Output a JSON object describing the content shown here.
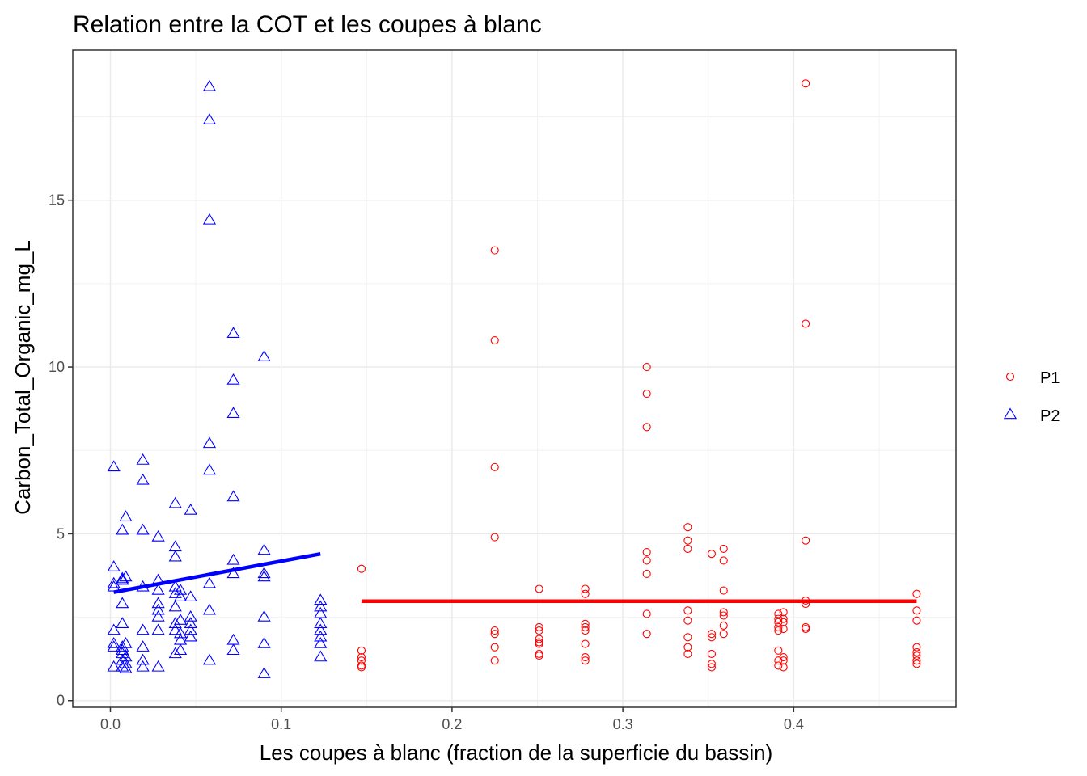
{
  "chart_data": {
    "type": "scatter",
    "title": "Relation entre la COT et les coupes à blanc",
    "xlabel": "Les coupes à blanc (fraction de la superficie du bassin)",
    "ylabel": "Carbon_Total_Organic_mg_L",
    "xlim": [
      -0.022,
      0.495
    ],
    "ylim": [
      -0.2,
      19.5
    ],
    "x_ticks": [
      0.0,
      0.1,
      0.2,
      0.3,
      0.4
    ],
    "x_tick_labels": [
      "0.0",
      "0.1",
      "0.2",
      "0.3",
      "0.4"
    ],
    "y_ticks": [
      0,
      5,
      10,
      15
    ],
    "y_tick_labels": [
      "0",
      "5",
      "10",
      "15"
    ],
    "grid": true,
    "legend_position": "right",
    "series": [
      {
        "name": "P1",
        "color": "#ff0000",
        "marker": "circle-open",
        "points": [
          [
            0.147,
            3.95
          ],
          [
            0.147,
            1.5
          ],
          [
            0.147,
            1.3
          ],
          [
            0.147,
            1.2
          ],
          [
            0.147,
            1.05
          ],
          [
            0.147,
            1.0
          ],
          [
            0.225,
            13.5
          ],
          [
            0.225,
            10.8
          ],
          [
            0.225,
            7.0
          ],
          [
            0.225,
            4.9
          ],
          [
            0.225,
            2.1
          ],
          [
            0.225,
            2.0
          ],
          [
            0.225,
            1.6
          ],
          [
            0.225,
            1.2
          ],
          [
            0.251,
            3.35
          ],
          [
            0.251,
            2.2
          ],
          [
            0.251,
            2.1
          ],
          [
            0.251,
            1.85
          ],
          [
            0.251,
            1.75
          ],
          [
            0.251,
            1.7
          ],
          [
            0.251,
            1.4
          ],
          [
            0.251,
            1.35
          ],
          [
            0.278,
            3.35
          ],
          [
            0.278,
            3.2
          ],
          [
            0.278,
            2.3
          ],
          [
            0.278,
            2.2
          ],
          [
            0.278,
            2.1
          ],
          [
            0.278,
            1.7
          ],
          [
            0.278,
            1.3
          ],
          [
            0.278,
            1.2
          ],
          [
            0.314,
            10.0
          ],
          [
            0.314,
            9.2
          ],
          [
            0.314,
            8.2
          ],
          [
            0.314,
            4.45
          ],
          [
            0.314,
            4.2
          ],
          [
            0.314,
            3.8
          ],
          [
            0.314,
            2.6
          ],
          [
            0.314,
            2.0
          ],
          [
            0.338,
            5.2
          ],
          [
            0.338,
            4.8
          ],
          [
            0.338,
            4.55
          ],
          [
            0.338,
            2.7
          ],
          [
            0.338,
            2.4
          ],
          [
            0.338,
            1.9
          ],
          [
            0.338,
            1.6
          ],
          [
            0.338,
            1.4
          ],
          [
            0.352,
            4.4
          ],
          [
            0.352,
            2.0
          ],
          [
            0.352,
            1.9
          ],
          [
            0.352,
            1.4
          ],
          [
            0.352,
            1.1
          ],
          [
            0.352,
            1.0
          ],
          [
            0.359,
            4.55
          ],
          [
            0.359,
            4.2
          ],
          [
            0.359,
            3.3
          ],
          [
            0.359,
            2.65
          ],
          [
            0.359,
            2.55
          ],
          [
            0.359,
            2.25
          ],
          [
            0.359,
            2.0
          ],
          [
            0.391,
            2.6
          ],
          [
            0.391,
            2.45
          ],
          [
            0.391,
            2.35
          ],
          [
            0.391,
            2.2
          ],
          [
            0.391,
            2.1
          ],
          [
            0.391,
            1.5
          ],
          [
            0.391,
            1.2
          ],
          [
            0.391,
            1.05
          ],
          [
            0.394,
            2.65
          ],
          [
            0.394,
            2.45
          ],
          [
            0.394,
            2.35
          ],
          [
            0.394,
            2.15
          ],
          [
            0.394,
            1.3
          ],
          [
            0.394,
            1.2
          ],
          [
            0.394,
            1.0
          ],
          [
            0.407,
            18.5
          ],
          [
            0.407,
            11.3
          ],
          [
            0.407,
            4.8
          ],
          [
            0.407,
            3.0
          ],
          [
            0.407,
            2.9
          ],
          [
            0.407,
            2.2
          ],
          [
            0.407,
            2.15
          ],
          [
            0.472,
            3.2
          ],
          [
            0.472,
            2.7
          ],
          [
            0.472,
            2.4
          ],
          [
            0.472,
            1.6
          ],
          [
            0.472,
            1.45
          ],
          [
            0.472,
            1.35
          ],
          [
            0.472,
            1.2
          ],
          [
            0.472,
            1.1
          ]
        ],
        "fit_line": {
          "x": [
            0.147,
            0.472
          ],
          "y": [
            2.98,
            2.98
          ]
        }
      },
      {
        "name": "P2",
        "color": "#0000ff",
        "marker": "triangle-open",
        "points": [
          [
            0.002,
            7.0
          ],
          [
            0.002,
            4.0
          ],
          [
            0.002,
            3.5
          ],
          [
            0.002,
            3.4
          ],
          [
            0.002,
            2.1
          ],
          [
            0.002,
            1.7
          ],
          [
            0.002,
            1.6
          ],
          [
            0.002,
            1.0
          ],
          [
            0.007,
            5.1
          ],
          [
            0.007,
            3.65
          ],
          [
            0.007,
            3.6
          ],
          [
            0.007,
            2.9
          ],
          [
            0.007,
            2.3
          ],
          [
            0.007,
            1.6
          ],
          [
            0.007,
            1.5
          ],
          [
            0.007,
            1.4
          ],
          [
            0.007,
            1.2
          ],
          [
            0.007,
            1.0
          ],
          [
            0.009,
            5.5
          ],
          [
            0.009,
            3.7
          ],
          [
            0.009,
            1.7
          ],
          [
            0.009,
            1.3
          ],
          [
            0.009,
            1.1
          ],
          [
            0.009,
            0.95
          ],
          [
            0.019,
            7.2
          ],
          [
            0.019,
            6.6
          ],
          [
            0.019,
            5.1
          ],
          [
            0.019,
            3.4
          ],
          [
            0.019,
            2.1
          ],
          [
            0.019,
            1.6
          ],
          [
            0.019,
            1.2
          ],
          [
            0.019,
            1.0
          ],
          [
            0.028,
            4.9
          ],
          [
            0.028,
            3.6
          ],
          [
            0.028,
            3.3
          ],
          [
            0.028,
            2.9
          ],
          [
            0.028,
            2.7
          ],
          [
            0.028,
            2.5
          ],
          [
            0.028,
            2.1
          ],
          [
            0.028,
            1.0
          ],
          [
            0.038,
            5.9
          ],
          [
            0.038,
            4.6
          ],
          [
            0.038,
            4.3
          ],
          [
            0.038,
            3.4
          ],
          [
            0.038,
            3.2
          ],
          [
            0.038,
            2.8
          ],
          [
            0.038,
            2.3
          ],
          [
            0.038,
            2.1
          ],
          [
            0.038,
            1.4
          ],
          [
            0.041,
            3.3
          ],
          [
            0.041,
            3.1
          ],
          [
            0.041,
            2.4
          ],
          [
            0.041,
            2.0
          ],
          [
            0.041,
            1.8
          ],
          [
            0.041,
            1.5
          ],
          [
            0.047,
            5.7
          ],
          [
            0.047,
            3.1
          ],
          [
            0.047,
            2.5
          ],
          [
            0.047,
            2.3
          ],
          [
            0.047,
            2.1
          ],
          [
            0.047,
            1.9
          ],
          [
            0.058,
            18.4
          ],
          [
            0.058,
            17.4
          ],
          [
            0.058,
            14.4
          ],
          [
            0.058,
            7.7
          ],
          [
            0.058,
            6.9
          ],
          [
            0.058,
            3.5
          ],
          [
            0.058,
            2.7
          ],
          [
            0.058,
            1.2
          ],
          [
            0.072,
            11.0
          ],
          [
            0.072,
            9.6
          ],
          [
            0.072,
            8.6
          ],
          [
            0.072,
            6.1
          ],
          [
            0.072,
            4.2
          ],
          [
            0.072,
            3.8
          ],
          [
            0.072,
            1.8
          ],
          [
            0.072,
            1.5
          ],
          [
            0.09,
            10.3
          ],
          [
            0.09,
            4.5
          ],
          [
            0.09,
            3.8
          ],
          [
            0.09,
            3.7
          ],
          [
            0.09,
            2.5
          ],
          [
            0.09,
            1.7
          ],
          [
            0.09,
            0.8
          ],
          [
            0.123,
            3.0
          ],
          [
            0.123,
            2.8
          ],
          [
            0.123,
            2.6
          ],
          [
            0.123,
            2.3
          ],
          [
            0.123,
            2.1
          ],
          [
            0.123,
            1.9
          ],
          [
            0.123,
            1.7
          ],
          [
            0.123,
            1.3
          ]
        ],
        "fit_line": {
          "x": [
            0.002,
            0.123
          ],
          "y": [
            3.25,
            4.4
          ]
        }
      }
    ]
  }
}
